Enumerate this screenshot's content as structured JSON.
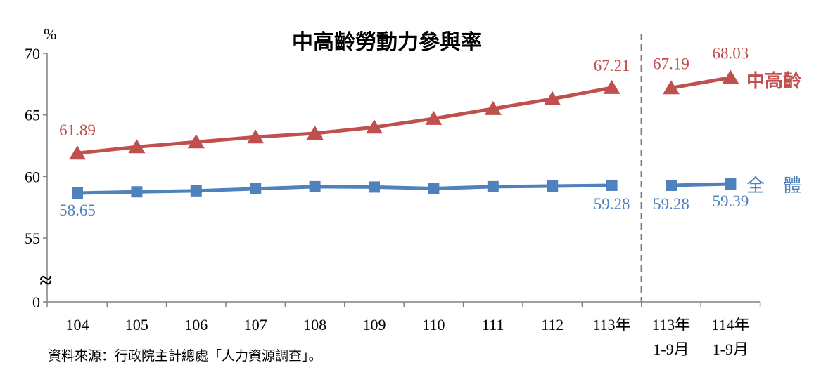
{
  "chart_data": {
    "type": "line",
    "title": "中高齡勞動力參與率",
    "y_unit": "%",
    "ylim": [
      0,
      70
    ],
    "y_ticks": [
      0,
      55,
      60,
      65,
      70
    ],
    "axis_break": true,
    "axis_break_symbol": "≈",
    "categories": [
      {
        "label": "104",
        "sub": ""
      },
      {
        "label": "105",
        "sub": ""
      },
      {
        "label": "106",
        "sub": ""
      },
      {
        "label": "107",
        "sub": ""
      },
      {
        "label": "108",
        "sub": ""
      },
      {
        "label": "109",
        "sub": ""
      },
      {
        "label": "110",
        "sub": ""
      },
      {
        "label": "111",
        "sub": ""
      },
      {
        "label": "112",
        "sub": ""
      },
      {
        "label": "113年",
        "sub": ""
      },
      {
        "label": "113年",
        "sub": "1-9月"
      },
      {
        "label": "114年",
        "sub": "1-9月"
      }
    ],
    "divider_after_index": 9,
    "series": [
      {
        "name": "中高齡",
        "color": "#c0504d",
        "marker": "triangle",
        "values": [
          61.89,
          62.4,
          62.8,
          63.2,
          63.5,
          64.0,
          64.7,
          65.5,
          66.3,
          67.21,
          67.19,
          68.03
        ],
        "labeled_points": [
          {
            "index": 0,
            "text": "61.89"
          },
          {
            "index": 9,
            "text": "67.21"
          },
          {
            "index": 10,
            "text": "67.19"
          },
          {
            "index": 11,
            "text": "68.03"
          }
        ]
      },
      {
        "name": "全　體",
        "color": "#4f81bd",
        "marker": "square",
        "values": [
          58.65,
          58.75,
          58.83,
          59.0,
          59.17,
          59.14,
          59.02,
          59.17,
          59.22,
          59.28,
          59.28,
          59.39
        ],
        "labeled_points": [
          {
            "index": 0,
            "text": "58.65"
          },
          {
            "index": 9,
            "text": "59.28"
          },
          {
            "index": 10,
            "text": "59.28"
          },
          {
            "index": 11,
            "text": "59.39"
          }
        ]
      }
    ]
  },
  "footer": {
    "source": "資料來源：行政院主計總處「人力資源調查」。"
  }
}
